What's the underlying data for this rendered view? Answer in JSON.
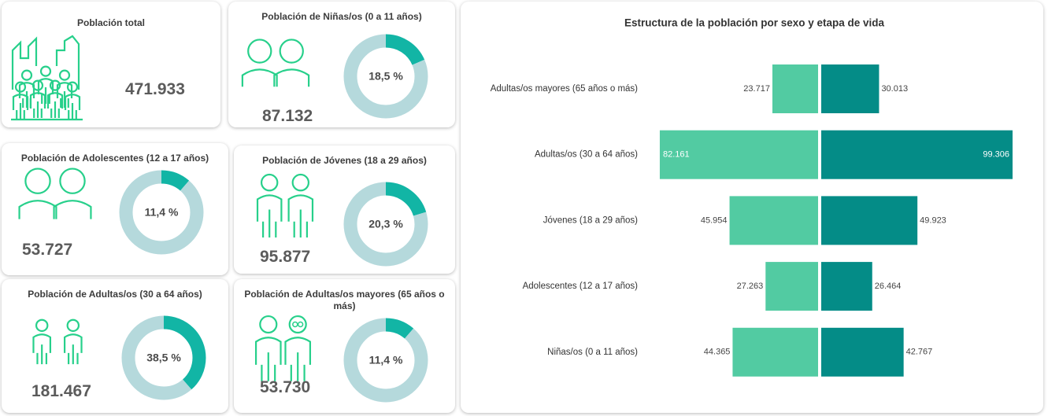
{
  "chart_data": [
    {
      "type": "kpi",
      "title": "Población total",
      "value": "471.933"
    },
    {
      "type": "donut",
      "title": "Población de Niñas/os (0 a 11 años)",
      "value": "87.132",
      "values": [
        18.5,
        81.5
      ],
      "value_labels": [
        "18,5 %",
        null
      ],
      "colors": [
        "#12b5a5",
        "#b5d9dc"
      ]
    },
    {
      "type": "donut",
      "title": "Población de Adolescentes (12 a 17 años)",
      "value": "53.727",
      "values": [
        11.4,
        88.6
      ],
      "value_labels": [
        "11,4 %",
        null
      ],
      "colors": [
        "#12b5a5",
        "#b5d9dc"
      ]
    },
    {
      "type": "donut",
      "title": "Población de Jóvenes (18 a 29 años)",
      "value": "95.877",
      "values": [
        20.3,
        79.7
      ],
      "value_labels": [
        "20,3 %",
        null
      ],
      "colors": [
        "#12b5a5",
        "#b5d9dc"
      ]
    },
    {
      "type": "donut",
      "title": "Población de Adultas/os (30 a 64 años)",
      "value": "181.467",
      "values": [
        38.5,
        61.5
      ],
      "value_labels": [
        "38,5 %",
        null
      ],
      "colors": [
        "#12b5a5",
        "#b5d9dc"
      ]
    },
    {
      "type": "donut",
      "title": "Población de Adultas/os mayores (65 años o más)",
      "value": "53.730",
      "values": [
        11.4,
        88.6
      ],
      "value_labels": [
        "11,4 %",
        null
      ],
      "colors": [
        "#12b5a5",
        "#b5d9dc"
      ]
    },
    {
      "type": "pyramid",
      "title": "Estructura de la población por sexo y etapa de vida",
      "categories": [
        "Adultas/os mayores (65 años o más)",
        "Adultas/os (30 a 64 años)",
        "Jóvenes (18 a 29 años)",
        "Adolescentes (12 a 17 años)",
        "Niñas/os (0 a 11 años)"
      ],
      "series": [
        {
          "color": "#52cba2",
          "values": [
            23717,
            82161,
            45954,
            27263,
            44365
          ],
          "value_labels": [
            "23.717",
            "82.161",
            "45.954",
            "27.263",
            "44.365"
          ]
        },
        {
          "color": "#048c87",
          "values": [
            30013,
            99306,
            49923,
            26464,
            42767
          ],
          "value_labels": [
            "30.013",
            "99.306",
            "49.923",
            "26.464",
            "42.767"
          ]
        }
      ]
    }
  ]
}
